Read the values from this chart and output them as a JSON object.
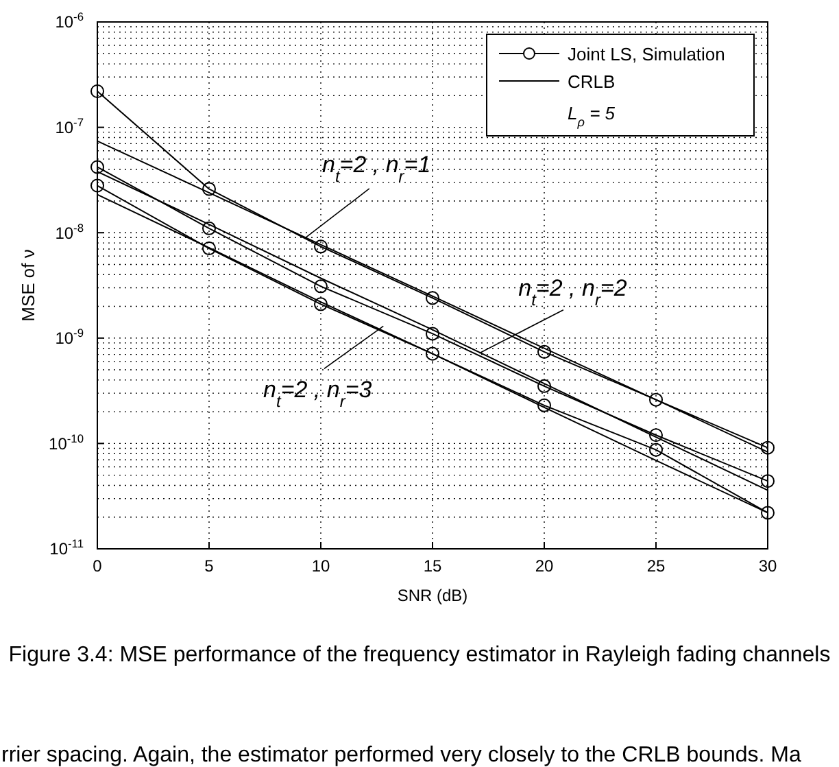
{
  "chart_data": {
    "type": "line",
    "xlabel": "SNR (dB)",
    "ylabel": "MSE of ν",
    "xlim": [
      0,
      30
    ],
    "xticks": [
      0,
      5,
      10,
      15,
      20,
      25,
      30
    ],
    "ylim": [
      1e-11,
      1e-06
    ],
    "yticks": [
      {
        "value": 1e-11,
        "label": "10$^{-11}$"
      },
      {
        "value": 1e-10,
        "label": "10$^{-10}$"
      },
      {
        "value": 1e-09,
        "label": "10$^{-9}$"
      },
      {
        "value": 1e-08,
        "label": "10$^{-8}$"
      },
      {
        "value": 1e-07,
        "label": "10$^{-7}$"
      },
      {
        "value": 1e-06,
        "label": "10$^{-6}$"
      }
    ],
    "log": "y",
    "grid": true,
    "legend": "top right",
    "line_style": "solid",
    "x": [
      0,
      5,
      10,
      15,
      20,
      25,
      30
    ],
    "series": [
      {
        "name": "Joint LS, Simulation",
        "color": "#000000",
        "marker": "circle",
        "values": [
          2.2e-07,
          2.6e-08,
          7.4e-09,
          2.4e-09,
          7.4e-10,
          2.6e-10,
          9.1e-11
        ]
      },
      {
        "name": "CRLB",
        "color": "#000000",
        "marker": "none",
        "values": [
          7.4e-08,
          2.4e-08,
          7.7e-09,
          2.5e-09,
          8e-10,
          2.6e-10,
          8.3e-11
        ]
      },
      {
        "color": "#000000",
        "marker": "circle",
        "values": [
          4.2e-08,
          1.1e-08,
          3.1e-09,
          1.1e-09,
          3.5e-10,
          1.2e-10,
          4.4e-11
        ]
      },
      {
        "color": "#000000",
        "marker": "none",
        "values": [
          3.8e-08,
          1.2e-08,
          3.7e-09,
          1.2e-09,
          3.7e-10,
          1.15e-10,
          3.6e-11
        ]
      },
      {
        "color": "#000000",
        "marker": "circle",
        "values": [
          2.8e-08,
          7.1e-09,
          2.1e-09,
          7.1e-10,
          2.3e-10,
          8.7e-11,
          2.2e-11
        ]
      },
      {
        "color": "#000000",
        "marker": "none",
        "values": [
          2.3e-08,
          7.2e-09,
          2.2e-09,
          7.1e-10,
          2.2e-10,
          6.9e-11,
          2.2e-11
        ]
      }
    ],
    "annotations": [
      {
        "text": "n$_{t}$=2 , n$_{r}$=1",
        "x": 9.3,
        "y": 8.9e-09
      },
      {
        "text": "n$_{t}$=2 , n$_{r}$=2",
        "x": 17.1,
        "y": 7.2e-10
      },
      {
        "text": "n$_{t}$=2 , n$_{r}$=3",
        "x": 12.8,
        "y": 1.3e-09
      },
      "L$_{ρ}$ = 5",
      "Figure 3.4: MSE performance of the frequency estimator in Rayleigh fading channels",
      "rrier spacing. Again, the estimator performed very closely to the CRLB bounds. Ma"
    ]
  }
}
